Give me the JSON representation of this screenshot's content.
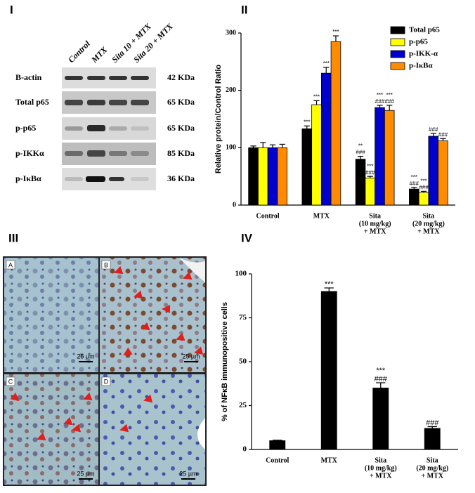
{
  "panel_labels": [
    "I",
    "II",
    "III",
    "IV"
  ],
  "blot": {
    "lanes": [
      "Control",
      "MTX",
      "Sita 10 + MTX",
      "Sita 20 + MTX"
    ],
    "rows": [
      {
        "protein": "B-actin",
        "size": "42 KDa"
      },
      {
        "protein": "Total p65",
        "size": "65 KDa"
      },
      {
        "protein": "p-p65",
        "size": "65 KDa"
      },
      {
        "protein": "p-IKKα",
        "size": "85 KDa"
      },
      {
        "protein": "p-IκBα",
        "size": "36 KDa"
      }
    ]
  },
  "histology": {
    "images": [
      "A",
      "B",
      "C",
      "D"
    ],
    "scale_bar": "25 µm"
  },
  "chart_data": [
    {
      "type": "bar",
      "ylabel": "Relative protein/Control Ratio",
      "categories": [
        [
          "Control"
        ],
        [
          "MTX"
        ],
        [
          "Sita",
          "(10 mg/kg)",
          "+ MTX"
        ],
        [
          "Sita",
          "(20 mg/kg)",
          "+ MTX"
        ]
      ],
      "series": [
        {
          "name": "Total p65",
          "color": "#000000",
          "values": [
            100,
            133,
            80,
            28
          ],
          "errors": [
            3,
            5,
            5,
            3
          ],
          "annotations": [
            null,
            [
              "***"
            ],
            [
              "**",
              "###"
            ],
            [
              "***",
              "###"
            ]
          ]
        },
        {
          "name": "p-p65",
          "color": "#ffff00",
          "values": [
            100,
            175,
            47,
            22
          ],
          "errors": [
            9,
            7,
            3,
            2
          ],
          "annotations": [
            null,
            [
              "***"
            ],
            [
              "***",
              "###"
            ],
            [
              "***",
              "###"
            ]
          ]
        },
        {
          "name": "p-IKK-α",
          "color": "#0000cc",
          "values": [
            100,
            230,
            170,
            120
          ],
          "errors": [
            5,
            10,
            4,
            5
          ],
          "annotations": [
            null,
            [
              "***"
            ],
            [
              "***",
              "###"
            ],
            [
              "###"
            ]
          ]
        },
        {
          "name": "p-IκBα",
          "color": "#ff8c00",
          "values": [
            100,
            285,
            165,
            112
          ],
          "errors": [
            6,
            10,
            9,
            4
          ],
          "annotations": [
            null,
            [
              "***"
            ],
            [
              "***",
              "###"
            ],
            [
              "###"
            ]
          ]
        }
      ],
      "ylim": [
        0,
        300
      ],
      "yticks": [
        0,
        100,
        200,
        300
      ],
      "grid": false,
      "legend": "upper right"
    },
    {
      "type": "bar",
      "ylabel": "% of NFκB immunopositive cells",
      "categories": [
        [
          "Control"
        ],
        [
          "MTX"
        ],
        [
          "Sita",
          "(10 mg/kg)",
          "+ MTX"
        ],
        [
          "Sita",
          "(20 mg/kg)",
          "+ MTX"
        ]
      ],
      "values": [
        5,
        90,
        35,
        12
      ],
      "errors": [
        0.3,
        2,
        3,
        1
      ],
      "color": "#000000",
      "annotations": [
        null,
        [
          "***"
        ],
        [
          "***",
          "###"
        ],
        [
          "###"
        ]
      ],
      "ylim": [
        0,
        100
      ],
      "yticks": [
        0,
        25,
        50,
        75,
        100
      ],
      "grid": false
    }
  ]
}
